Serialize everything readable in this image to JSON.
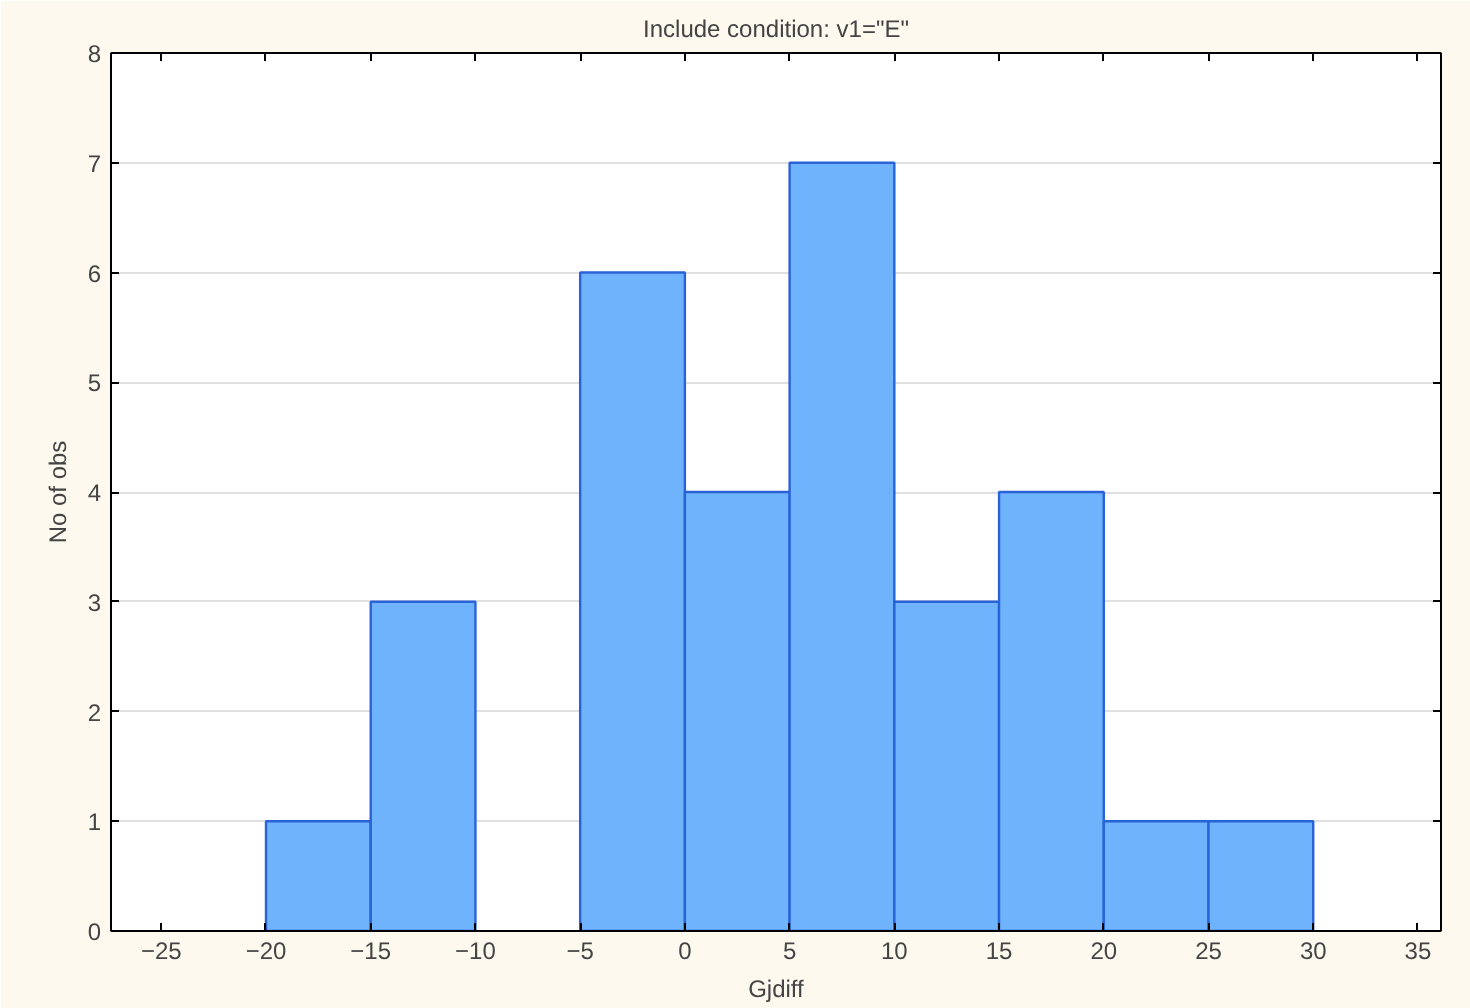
{
  "chart_data": {
    "type": "histogram",
    "title": "Include condition: v1=\"E\"",
    "xlabel": "Gjdiff",
    "ylabel": "No of obs",
    "bins": [
      -20,
      -15,
      -10,
      -5,
      0,
      5,
      10,
      15,
      20,
      25,
      30
    ],
    "values": [
      1,
      3,
      0,
      6,
      4,
      7,
      3,
      4,
      1,
      1
    ],
    "color": "#6fb3fc",
    "xlim": [
      -27.4,
      36.1
    ],
    "xticks": [
      -25,
      -20,
      -15,
      -10,
      -5,
      0,
      5,
      10,
      15,
      20,
      25,
      30,
      35
    ],
    "ylim": [
      0,
      8
    ],
    "yticks": [
      0,
      1,
      2,
      3,
      4,
      5,
      6,
      7,
      8
    ],
    "grid": "y"
  }
}
